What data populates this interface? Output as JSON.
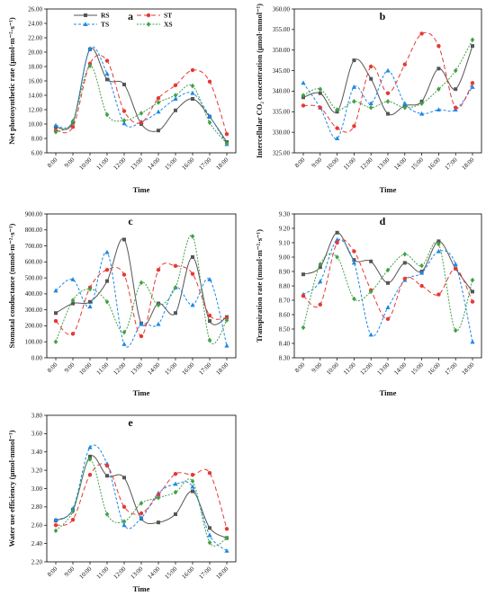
{
  "colors": {
    "RS": "#555555",
    "TS": "#1e88e5",
    "ST": "#e53935",
    "XS": "#43a047"
  },
  "legend": [
    {
      "key": "RS",
      "label": "RS",
      "marker": "square",
      "dash": "none"
    },
    {
      "key": "TS",
      "label": "TS",
      "marker": "triangle",
      "dash": "3,2"
    },
    {
      "key": "ST",
      "label": "ST",
      "marker": "circle",
      "dash": "5,3"
    },
    {
      "key": "XS",
      "label": "XS",
      "marker": "diamond",
      "dash": "2,1.5"
    }
  ],
  "chart_data": [
    {
      "panel": "a",
      "type": "line",
      "ylabel": "Net photosynthetic rate (μmol·m⁻²·s⁻¹)",
      "xlabel": "Time",
      "x": [
        "8:00",
        "9:00",
        "10:00",
        "11:00",
        "12:00",
        "13:00",
        "14:00",
        "15:00",
        "16:00",
        "17:00",
        "18:00"
      ],
      "ylim": [
        6,
        26
      ],
      "yticks": [
        "6.00",
        "8.00",
        "10.00",
        "12.00",
        "14.00",
        "16.00",
        "18.00",
        "20.00",
        "22.00",
        "24.00",
        "26.00"
      ],
      "series": [
        {
          "name": "RS",
          "values": [
            9.6,
            10.2,
            20.4,
            16.2,
            15.5,
            10.0,
            9.1,
            11.9,
            13.5,
            11.0,
            7.5
          ]
        },
        {
          "name": "TS",
          "values": [
            9.8,
            10.4,
            20.5,
            17.0,
            10.1,
            10.3,
            11.7,
            13.5,
            14.3,
            11.1,
            7.2
          ]
        },
        {
          "name": "ST",
          "values": [
            9.1,
            9.6,
            18.4,
            18.8,
            11.8,
            10.2,
            13.6,
            15.4,
            17.5,
            15.9,
            8.6
          ]
        },
        {
          "name": "XS",
          "values": [
            8.9,
            10.4,
            18.1,
            11.3,
            10.5,
            11.5,
            13.0,
            14.0,
            15.3,
            10.2,
            7.3
          ]
        }
      ]
    },
    {
      "panel": "b",
      "type": "line",
      "ylabel": "Intercellular CO₂ concentration (μmol·mmol⁻¹)",
      "xlabel": "Time",
      "x": [
        "8:00",
        "9:00",
        "10:00",
        "11:00",
        "12:00",
        "13:00",
        "14:00",
        "15:00",
        "16:00",
        "17:00",
        "18:00"
      ],
      "ylim": [
        325,
        360
      ],
      "yticks": [
        "325.00",
        "330.00",
        "335.00",
        "340.00",
        "345.00",
        "350.00",
        "355.00",
        "360.00"
      ],
      "series": [
        {
          "name": "RS",
          "values": [
            338.5,
            339.5,
            335.0,
            347.5,
            343.0,
            334.5,
            336.5,
            337.5,
            345.5,
            340.5,
            351.0
          ]
        },
        {
          "name": "TS",
          "values": [
            342.0,
            336.0,
            328.5,
            341.0,
            337.0,
            345.0,
            337.0,
            334.5,
            335.5,
            335.5,
            341.0
          ]
        },
        {
          "name": "ST",
          "values": [
            336.5,
            336.0,
            331.0,
            331.5,
            346.0,
            339.5,
            346.5,
            354.0,
            351.0,
            336.0,
            342.0
          ]
        },
        {
          "name": "XS",
          "values": [
            339.0,
            340.5,
            335.5,
            337.5,
            336.0,
            337.5,
            336.0,
            337.0,
            340.5,
            345.0,
            352.5
          ]
        }
      ]
    },
    {
      "panel": "c",
      "type": "line",
      "ylabel": "Stomatal conductance (mmol·m⁻²·s⁻¹)",
      "xlabel": "Time",
      "x": [
        "8:00",
        "9:00",
        "10:00",
        "11:00",
        "12:00",
        "13:00",
        "14:00",
        "15:00",
        "16:00",
        "17:00",
        "18:00"
      ],
      "ylim": [
        0,
        900
      ],
      "yticks": [
        "0.00",
        "100.00",
        "200.00",
        "300.00",
        "400.00",
        "500.00",
        "600.00",
        "700.00",
        "800.00",
        "900.00"
      ],
      "series": [
        {
          "name": "RS",
          "values": [
            280,
            340,
            350,
            480,
            740,
            215,
            340,
            280,
            630,
            230,
            255
          ]
        },
        {
          "name": "TS",
          "values": [
            420,
            490,
            320,
            660,
            85,
            210,
            210,
            440,
            330,
            490,
            75
          ]
        },
        {
          "name": "ST",
          "values": [
            230,
            150,
            440,
            550,
            520,
            135,
            550,
            575,
            525,
            265,
            250
          ]
        },
        {
          "name": "XS",
          "values": [
            100,
            360,
            430,
            350,
            160,
            470,
            330,
            440,
            760,
            110,
            235
          ]
        }
      ]
    },
    {
      "panel": "d",
      "type": "line",
      "ylabel": "Transpiration rate (mmol·m⁻²·s⁻¹)",
      "xlabel": "Time",
      "x": [
        "8:00",
        "9:00",
        "10:00",
        "11:00",
        "12:00",
        "13:00",
        "14:00",
        "15:00",
        "16:00",
        "17:00",
        "18:00"
      ],
      "ylim": [
        8.3,
        9.3
      ],
      "yticks": [
        "8.30",
        "8.40",
        "8.50",
        "8.60",
        "8.70",
        "8.80",
        "8.90",
        "9.00",
        "9.10",
        "9.20",
        "9.30"
      ],
      "series": [
        {
          "name": "RS",
          "values": [
            8.88,
            8.93,
            9.17,
            8.98,
            8.97,
            8.82,
            8.96,
            8.9,
            9.11,
            8.92,
            8.76
          ]
        },
        {
          "name": "TS",
          "values": [
            8.74,
            8.83,
            9.12,
            8.96,
            8.46,
            8.65,
            8.84,
            8.89,
            9.04,
            8.95,
            8.41
          ]
        },
        {
          "name": "ST",
          "values": [
            8.73,
            8.67,
            9.1,
            9.04,
            8.77,
            8.57,
            8.85,
            8.8,
            8.74,
            8.92,
            8.69
          ]
        },
        {
          "name": "XS",
          "values": [
            8.51,
            8.95,
            9.0,
            8.71,
            8.76,
            8.91,
            9.02,
            8.94,
            9.09,
            8.49,
            8.84
          ]
        }
      ]
    },
    {
      "panel": "e",
      "type": "line",
      "ylabel": "Water use efficiency (μmol·mmol⁻¹)",
      "xlabel": "Time",
      "x": [
        "8:00",
        "9:00",
        "10:00",
        "11:00",
        "12:00",
        "13:00",
        "14:00",
        "15:00",
        "16:00",
        "17:00",
        "18:00"
      ],
      "ylim": [
        2.2,
        3.8
      ],
      "yticks": [
        "2.20",
        "2.40",
        "2.60",
        "2.80",
        "3.00",
        "3.20",
        "3.40",
        "3.60",
        "3.80"
      ],
      "series": [
        {
          "name": "RS",
          "values": [
            2.65,
            2.77,
            3.35,
            3.14,
            3.12,
            2.67,
            2.63,
            2.72,
            2.97,
            2.57,
            2.46
          ]
        },
        {
          "name": "TS",
          "values": [
            2.66,
            2.78,
            3.45,
            3.27,
            2.6,
            2.68,
            2.95,
            3.05,
            3.02,
            2.49,
            2.32
          ]
        },
        {
          "name": "ST",
          "values": [
            2.6,
            2.66,
            3.15,
            3.25,
            2.8,
            2.73,
            2.93,
            3.16,
            3.15,
            3.17,
            2.56
          ]
        },
        {
          "name": "XS",
          "values": [
            2.54,
            2.75,
            3.32,
            2.72,
            2.64,
            2.84,
            2.9,
            2.96,
            3.08,
            2.41,
            2.46
          ]
        }
      ]
    }
  ]
}
